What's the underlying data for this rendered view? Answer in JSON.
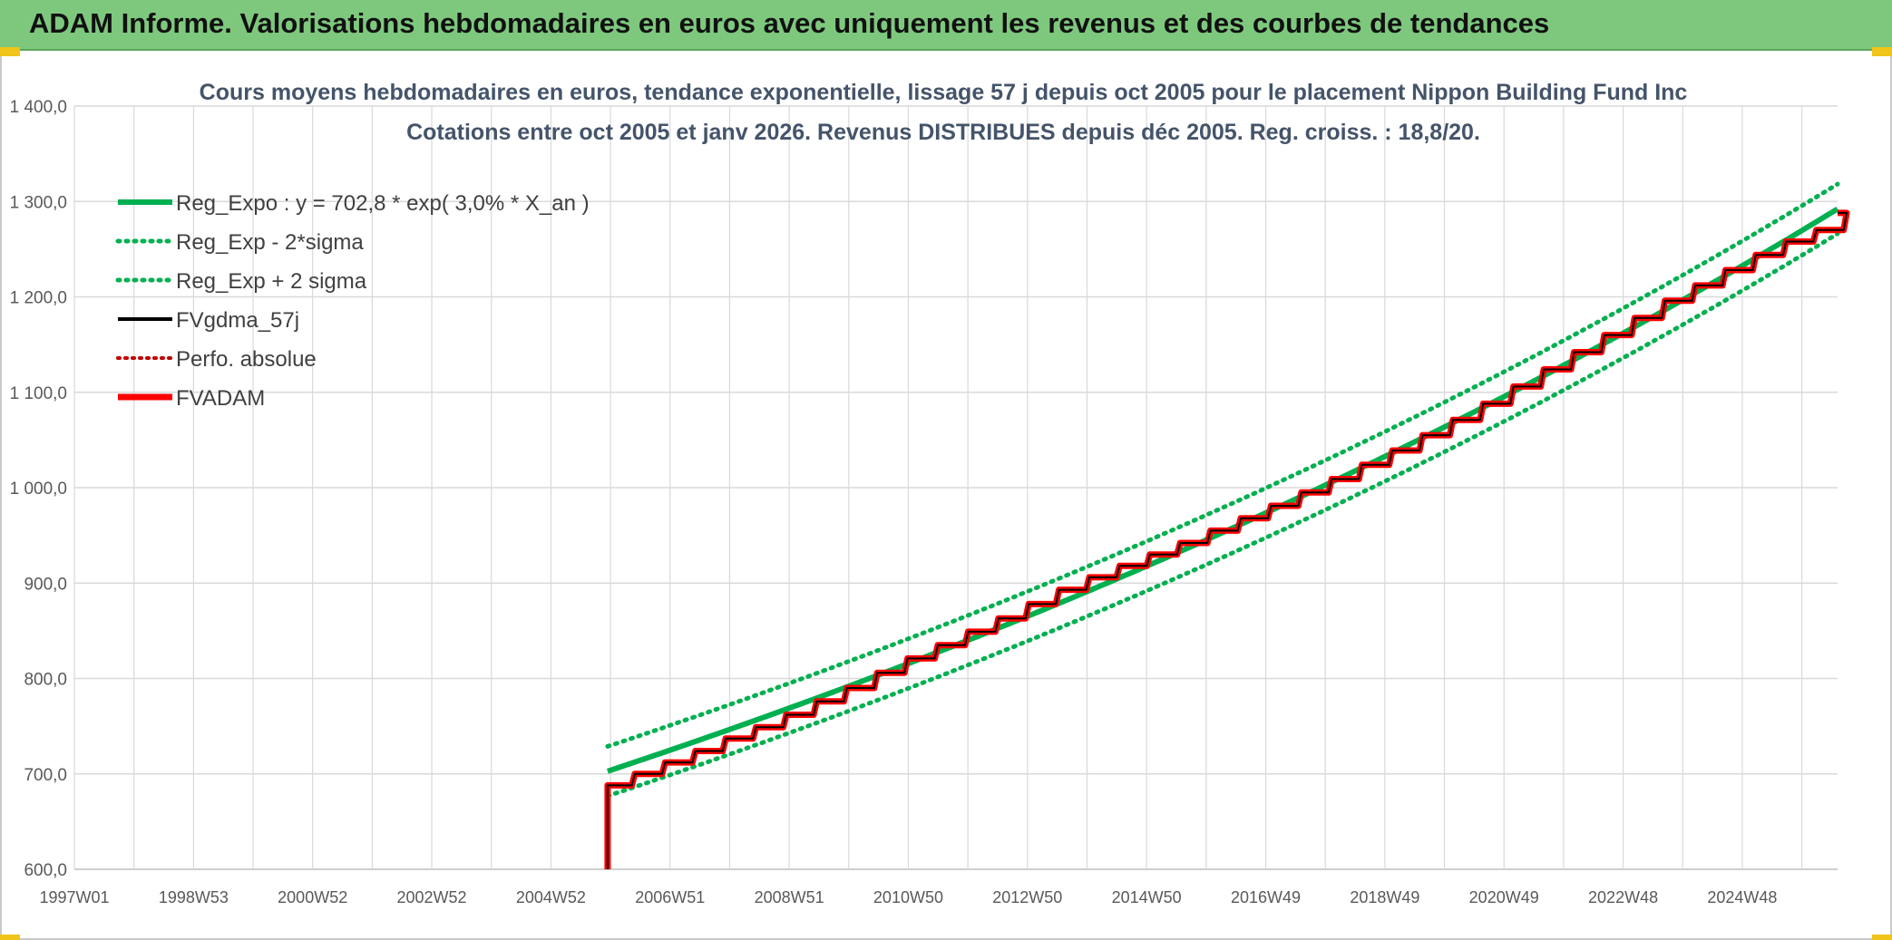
{
  "banner": {
    "title": "ADAM Informe. Valorisations hebdomadaires en euros avec uniquement les revenus et des courbes de tendances"
  },
  "colors": {
    "banner_bg": "#7ec87e",
    "reg_green": "#00b050",
    "fvgdma_black": "#000000",
    "fvadam_red": "#ff0000",
    "perfo_red": "#c00000",
    "title_text": "#44546a"
  },
  "chart_data": {
    "type": "line",
    "title_line1": "Cours moyens hebdomadaires en euros, tendance exponentielle, lissage 57 j depuis oct 2005 pour le placement Nippon Building Fund Inc",
    "title_line2": "Cotations entre oct 2005 et janv 2026. Revenus DISTRIBUES depuis déc 2005. Reg. croiss. : 18,8/20.",
    "xlabel": "",
    "ylabel": "",
    "ylim": [
      600,
      1400
    ],
    "y_ticks": [
      "600,0",
      "700,0",
      "800,0",
      "900,0",
      "1 000,0",
      "1 100,0",
      "1 200,0",
      "1 300,0",
      "1 400,0"
    ],
    "x_tick_labels": [
      "1997W01",
      "1998W53",
      "2000W52",
      "2002W52",
      "2004W52",
      "2006W51",
      "2008W51",
      "2010W50",
      "2012W50",
      "2014W50",
      "2016W49",
      "2018W49",
      "2020W49",
      "2022W48",
      "2024W48"
    ],
    "x_range_years": [
      1997.0,
      2026.1
    ],
    "start_year": 2005.8,
    "grid": true,
    "legend_position": "top-left",
    "regression": {
      "a": 702.8,
      "rate": 0.03
    },
    "sigma_offset": 26,
    "fvadam_steps": {
      "start_value": 600,
      "first_value": 688,
      "step_start_year": 2006.2,
      "step_interval_years": 0.5,
      "step_values": [
        700,
        712,
        724,
        737,
        749,
        762,
        776,
        790,
        806,
        821,
        835,
        849,
        863,
        878,
        893,
        906,
        918,
        930,
        942,
        955,
        968,
        981,
        995,
        1009,
        1024,
        1039,
        1055,
        1071,
        1088,
        1106,
        1124,
        1142,
        1160,
        1178,
        1196,
        1212,
        1228,
        1244,
        1258,
        1270,
        1288
      ]
    },
    "series": [
      {
        "name": "Reg_Expo : y = 702,8 * exp( 3,0% *  X_an )",
        "style": "solid-green-thick"
      },
      {
        "name": "Reg_Exp - 2*sigma",
        "style": "dotted-green"
      },
      {
        "name": "Reg_Exp + 2 sigma",
        "style": "dotted-green"
      },
      {
        "name": "FVgdma_57j",
        "style": "solid-black"
      },
      {
        "name": "Perfo. absolue",
        "style": "dotted-red"
      },
      {
        "name": "FVADAM",
        "style": "solid-red-thick"
      }
    ]
  }
}
